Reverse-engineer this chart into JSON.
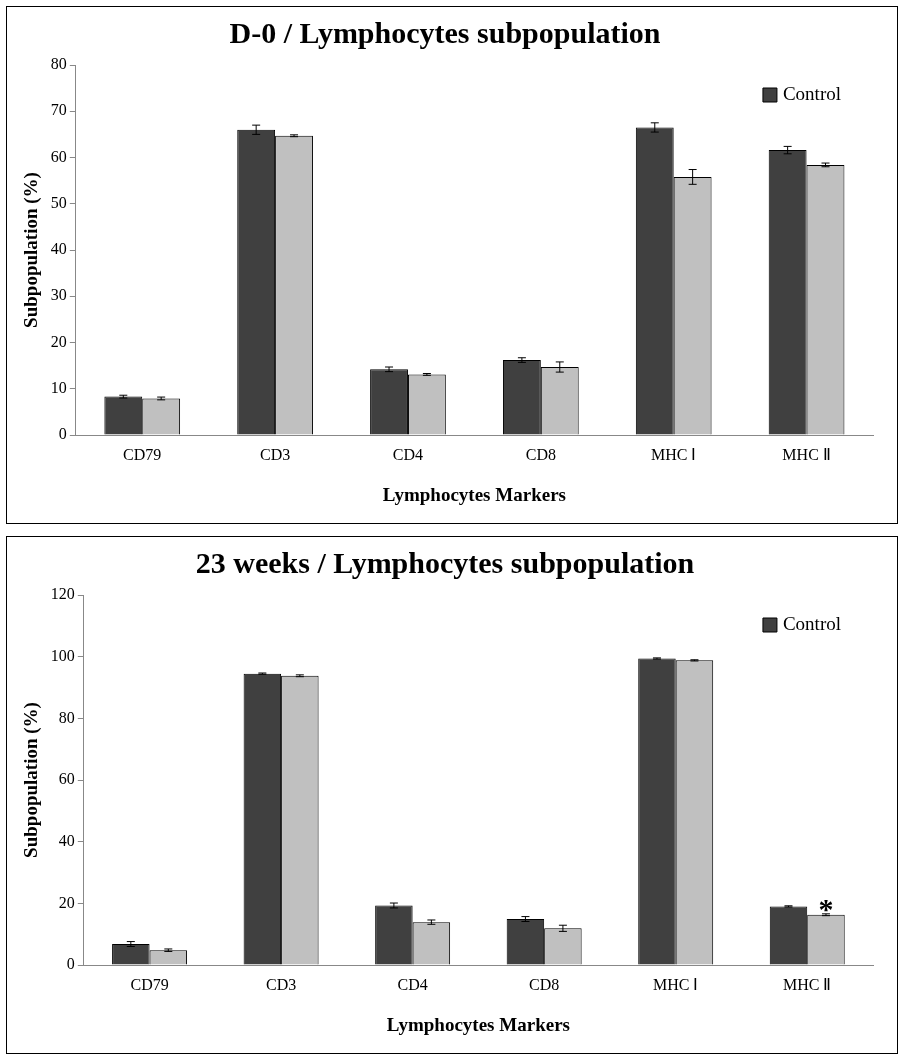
{
  "chart_data": [
    {
      "type": "bar",
      "title": "D-0 / Lymphocytes subpopulation",
      "xlabel": "Lymphocytes Markers",
      "ylabel": "Subpopulation (%)",
      "categories": [
        "CD79",
        "CD3",
        "CD4",
        "CD8",
        "MHC Ⅰ",
        "MHC Ⅱ"
      ],
      "series": [
        {
          "name": "Control",
          "color": "#404040",
          "values": [
            8.3,
            66,
            14.2,
            16.2,
            66.5,
            61.6
          ],
          "errors": [
            0.3,
            1,
            0.5,
            0.5,
            1,
            0.8
          ]
        },
        {
          "color": "#c0c0c0",
          "values": [
            7.9,
            64.7,
            13.1,
            14.7,
            55.8,
            58.4
          ],
          "errors": [
            0.3,
            0.2,
            0.2,
            1.1,
            1.6,
            0.4
          ]
        }
      ],
      "ylim": [
        0,
        80
      ],
      "yticks": [
        0,
        10,
        20,
        30,
        40,
        50,
        60,
        70,
        80
      ],
      "grid": false,
      "legend": "top right"
    },
    {
      "type": "bar",
      "title": "23 weeks / Lymphocytes subpopulation",
      "xlabel": "Lymphocytes Markers",
      "ylabel": "Subpopulation (%)",
      "categories": [
        "CD79",
        "CD3",
        "CD4",
        "CD8",
        "MHC Ⅰ",
        "MHC Ⅱ"
      ],
      "series": [
        {
          "name": "Control",
          "color": "#404040",
          "values": [
            6.8,
            94.5,
            19.3,
            14.9,
            99.4,
            19
          ],
          "errors": [
            0.8,
            0.2,
            0.8,
            0.8,
            0.2,
            0.2
          ]
        },
        {
          "color": "#c0c0c0",
          "values": [
            4.8,
            93.8,
            13.9,
            11.9,
            98.8,
            16.3
          ],
          "errors": [
            0.4,
            0.3,
            0.7,
            1,
            0.2,
            0.3
          ]
        }
      ],
      "ylim": [
        0,
        120
      ],
      "yticks": [
        0,
        20,
        40,
        60,
        80,
        100,
        120
      ],
      "grid": false,
      "legend": "top right",
      "annotations": [
        {
          "text": "*",
          "x": "MHC Ⅱ",
          "y": 16.3
        }
      ]
    }
  ]
}
